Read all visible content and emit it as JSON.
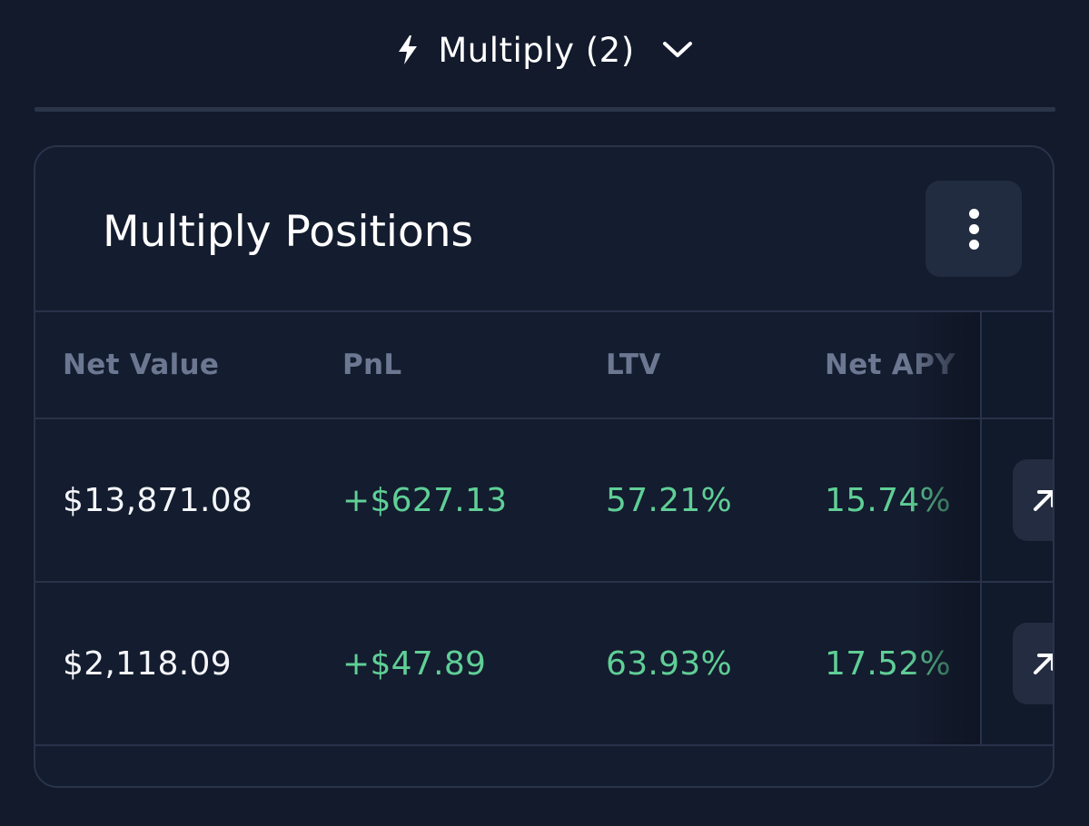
{
  "toggle": {
    "icon": "lightning-icon",
    "label": "Multiply (2)",
    "chevron": "chevron-down-icon"
  },
  "card": {
    "title": "Multiply Positions",
    "menu_icon": "more-vertical-icon"
  },
  "table": {
    "columns": [
      "Net Value",
      "PnL",
      "LTV",
      "Net APY"
    ],
    "rows": [
      {
        "net_value": "$13,871.08",
        "pnl": "+$627.13",
        "ltv": "57.21%",
        "net_apy": "15.74%"
      },
      {
        "net_value": "$2,118.09",
        "pnl": "+$47.89",
        "ltv": "63.93%",
        "net_apy": "17.52%"
      }
    ],
    "row_action_icon": "arrow-up-right-icon"
  },
  "colors": {
    "background": "#121a2c",
    "card": "#141c2f",
    "border": "#29334a",
    "positive": "#5fcf96",
    "muted_header": "#6c7891",
    "button": "#222c41"
  }
}
